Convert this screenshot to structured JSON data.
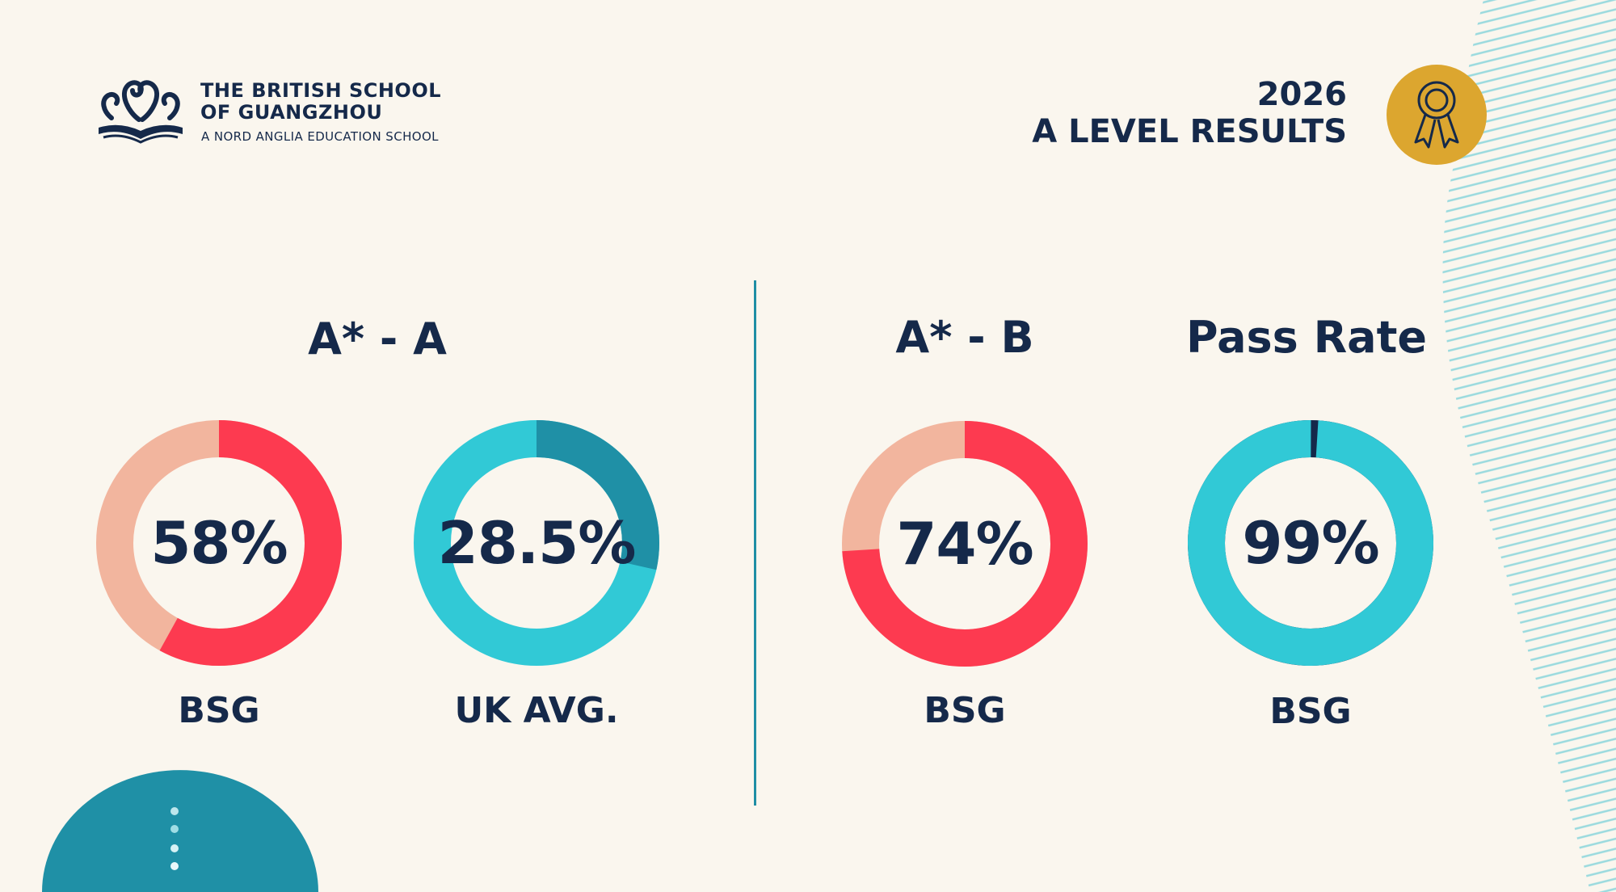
{
  "header": {
    "school_line1": "THE BRITISH SCHOOL",
    "school_line2": "OF GUANGZHOU",
    "school_sub": "A NORD ANGLIA EDUCATION SCHOOL",
    "year": "2026",
    "title": "A LEVEL RESULTS",
    "logo_icon": "swan-book-logo-icon",
    "award_icon": "award-ribbon-icon"
  },
  "colors": {
    "navy": "#15294a",
    "coral": "#fd3a50",
    "salmon": "#f2b59e",
    "teal": "#31c9d6",
    "dark_teal": "#1f90a6",
    "gold": "#dca62f",
    "background": "#faf6ee"
  },
  "chart_data": [
    {
      "type": "pie",
      "group": "A* - A",
      "label": "BSG",
      "value": 58,
      "value_text": "58%",
      "highlight_color": "#fd3a50",
      "rest_color": "#f2b59e"
    },
    {
      "type": "pie",
      "group": "A* - A",
      "label": "UK AVG.",
      "value": 28.5,
      "value_text": "28.5%",
      "highlight_color": "#1f90a6",
      "rest_color": "#31c9d6"
    },
    {
      "type": "pie",
      "group": "A* - B",
      "label": "BSG",
      "value": 74,
      "value_text": "74%",
      "highlight_color": "#fd3a50",
      "rest_color": "#f2b59e"
    },
    {
      "type": "pie",
      "group": "Pass Rate",
      "label": "BSG",
      "value": 99,
      "value_text": "99%",
      "highlight_color": "#31c9d6",
      "rest_color": "#15294a"
    }
  ],
  "groups": {
    "g1": "A* - A",
    "g2": "A* - B",
    "g3": "Pass Rate"
  }
}
